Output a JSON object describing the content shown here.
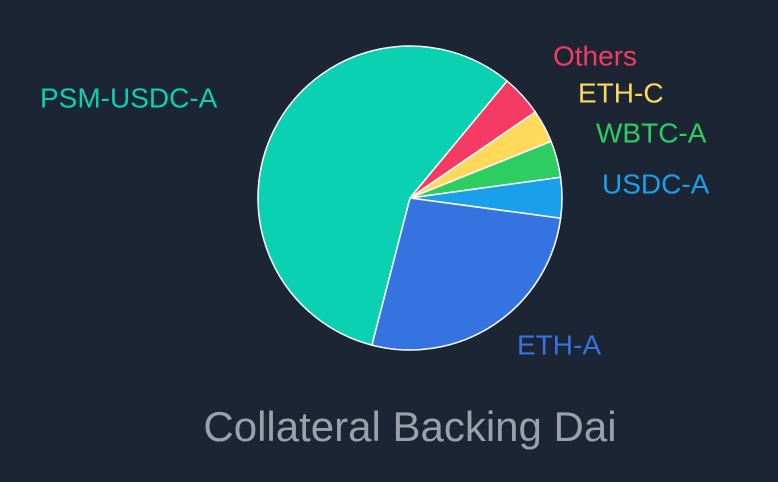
{
  "chart_data": {
    "type": "pie",
    "title": "Collateral Backing Dai",
    "categories": [
      "PSM-USDC-A",
      "Others",
      "ETH-C",
      "WBTC-A",
      "USDC-A",
      "ETH-A"
    ],
    "values": [
      57,
      4.4,
      3.5,
      3.9,
      4.3,
      26.9
    ],
    "colors": [
      "#0bd1b3",
      "#f53b64",
      "#ffd95a",
      "#2dcd62",
      "#1aa0ea",
      "#3574e0"
    ]
  }
}
